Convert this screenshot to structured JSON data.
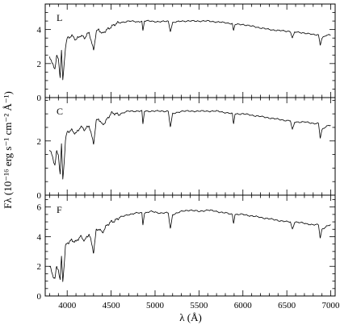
{
  "chart_data": {
    "type": "line",
    "x_range": [
      3750,
      7050
    ],
    "xlabel": "λ (Å)",
    "ylabel": "Fλ (10⁻¹⁶ erg s⁻¹ cm⁻² Å⁻¹)",
    "x_ticks": [
      4000,
      4500,
      5000,
      5500,
      6000,
      6500,
      7000
    ],
    "x_tick_labels": [
      "4000",
      "4500",
      "5000",
      "5500",
      "6000",
      "6500",
      "7000"
    ],
    "grid": false,
    "panels": [
      {
        "label": "L",
        "ylim": [
          0,
          5.5
        ],
        "y_ticks": [
          0,
          2,
          4
        ],
        "y_tick_labels": [
          "0",
          "2",
          "4"
        ],
        "x": [
          3800,
          3830,
          3860,
          3880,
          3900,
          3920,
          3935,
          3950,
          3965,
          3980,
          4000,
          4050,
          4100,
          4150,
          4200,
          4250,
          4300,
          4330,
          4360,
          4400,
          4450,
          4500,
          4600,
          4700,
          4800,
          4850,
          4861,
          4880,
          4950,
          5050,
          5150,
          5175,
          5200,
          5300,
          5400,
          5500,
          5600,
          5700,
          5800,
          5880,
          5893,
          5910,
          6000,
          6100,
          6200,
          6300,
          6400,
          6500,
          6540,
          6563,
          6590,
          6700,
          6800,
          6860,
          6880,
          6900,
          6950,
          7000
        ],
        "y": [
          2.5,
          2.0,
          1.7,
          2.4,
          2.2,
          1.2,
          2.8,
          1.0,
          2.0,
          3.0,
          3.5,
          3.6,
          3.4,
          3.7,
          3.5,
          3.8,
          2.8,
          3.9,
          4.0,
          3.7,
          4.0,
          4.2,
          4.4,
          4.5,
          4.45,
          4.5,
          3.9,
          4.5,
          4.5,
          4.45,
          4.5,
          3.9,
          4.4,
          4.5,
          4.5,
          4.5,
          4.5,
          4.45,
          4.4,
          4.35,
          3.9,
          4.3,
          4.3,
          4.2,
          4.1,
          4.0,
          3.95,
          3.9,
          3.9,
          3.5,
          3.85,
          3.8,
          3.7,
          3.7,
          3.1,
          3.5,
          3.65,
          3.7
        ]
      },
      {
        "label": "C",
        "ylim": [
          0,
          3.6
        ],
        "y_ticks": [
          0,
          2
        ],
        "y_tick_labels": [
          "0",
          "2"
        ],
        "x": [
          3800,
          3830,
          3860,
          3880,
          3900,
          3920,
          3935,
          3950,
          3965,
          3980,
          4000,
          4050,
          4100,
          4150,
          4200,
          4250,
          4300,
          4330,
          4360,
          4400,
          4450,
          4500,
          4600,
          4700,
          4800,
          4850,
          4861,
          4880,
          4950,
          5050,
          5150,
          5175,
          5200,
          5300,
          5400,
          5500,
          5600,
          5700,
          5800,
          5880,
          5893,
          5910,
          6000,
          6100,
          6200,
          6300,
          6400,
          6500,
          6540,
          6563,
          6590,
          6700,
          6800,
          6860,
          6880,
          6900,
          6950,
          7000
        ],
        "y": [
          1.7,
          1.4,
          1.1,
          1.6,
          1.5,
          0.8,
          1.9,
          0.6,
          1.2,
          2.0,
          2.3,
          2.4,
          2.3,
          2.5,
          2.4,
          2.6,
          1.9,
          2.7,
          2.8,
          2.6,
          2.8,
          3.0,
          3.0,
          3.1,
          3.1,
          3.1,
          2.6,
          3.1,
          3.1,
          3.1,
          3.1,
          2.5,
          3.0,
          3.1,
          3.1,
          3.1,
          3.1,
          3.1,
          3.05,
          3.0,
          2.6,
          3.0,
          3.0,
          2.95,
          2.9,
          2.85,
          2.8,
          2.75,
          2.75,
          2.4,
          2.7,
          2.7,
          2.65,
          2.65,
          2.1,
          2.4,
          2.55,
          2.6
        ]
      },
      {
        "label": "F",
        "ylim": [
          0,
          6.8
        ],
        "y_ticks": [
          0,
          2,
          4,
          6
        ],
        "y_tick_labels": [
          "0",
          "2",
          "4",
          "6"
        ],
        "x": [
          3800,
          3830,
          3860,
          3880,
          3900,
          3920,
          3935,
          3950,
          3965,
          3980,
          4000,
          4050,
          4100,
          4150,
          4200,
          4250,
          4300,
          4330,
          4360,
          4400,
          4450,
          4500,
          4600,
          4700,
          4800,
          4850,
          4861,
          4880,
          4950,
          5050,
          5150,
          5175,
          5200,
          5300,
          5400,
          5500,
          5600,
          5700,
          5800,
          5880,
          5893,
          5910,
          6000,
          6100,
          6200,
          6300,
          6400,
          6500,
          6540,
          6563,
          6590,
          6700,
          6800,
          6860,
          6880,
          6900,
          6950,
          7000
        ],
        "y": [
          2.0,
          1.5,
          1.2,
          2.0,
          1.8,
          1.0,
          2.6,
          1.0,
          2.0,
          3.3,
          3.6,
          3.8,
          3.6,
          4.0,
          3.8,
          4.2,
          2.9,
          4.4,
          4.6,
          4.3,
          4.7,
          5.0,
          5.3,
          5.5,
          5.6,
          5.6,
          4.8,
          5.6,
          5.7,
          5.6,
          5.6,
          4.5,
          5.5,
          5.7,
          5.8,
          5.7,
          5.8,
          5.7,
          5.6,
          5.5,
          4.9,
          5.5,
          5.5,
          5.4,
          5.3,
          5.2,
          5.1,
          5.0,
          5.0,
          4.5,
          5.0,
          4.9,
          4.8,
          4.8,
          3.9,
          4.5,
          4.7,
          4.8
        ]
      }
    ]
  }
}
